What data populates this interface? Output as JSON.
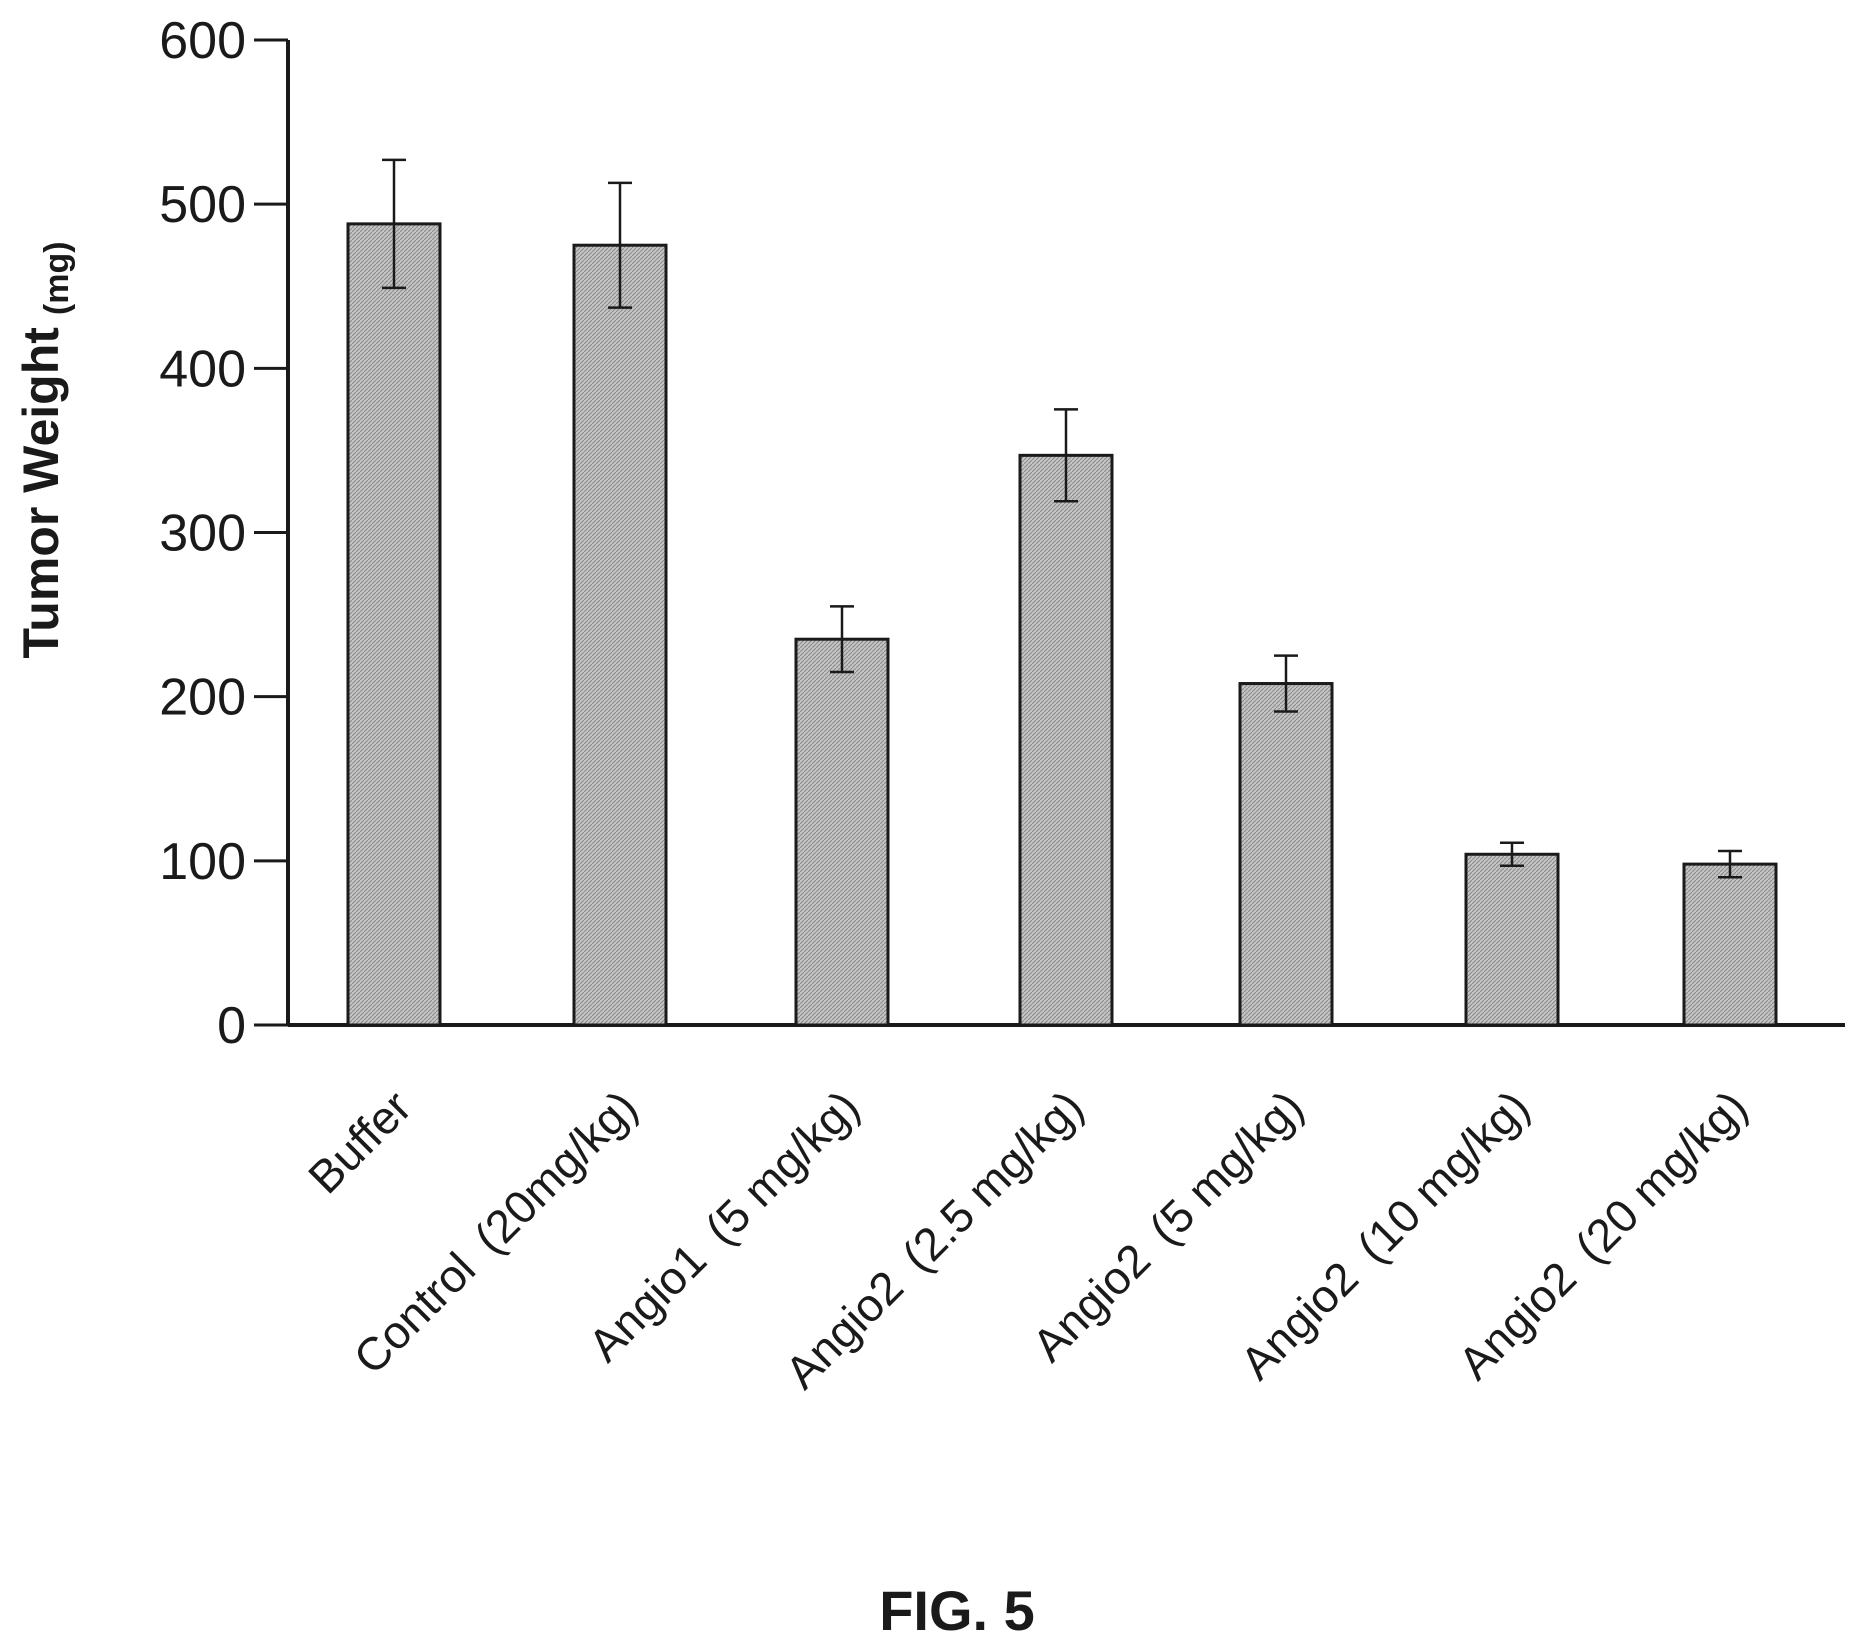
{
  "figure_caption": "FIG. 5",
  "chart_data": {
    "type": "bar",
    "categories": [
      {
        "name": "Buffer",
        "dose": ""
      },
      {
        "name": "Control",
        "dose": "(20mg/kg)"
      },
      {
        "name": "Angio1",
        "dose": "(5 mg/kg)"
      },
      {
        "name": "Angio2",
        "dose": "(2.5 mg/kg)"
      },
      {
        "name": "Angio2",
        "dose": "(5 mg/kg)"
      },
      {
        "name": "Angio2",
        "dose": "(10 mg/kg)"
      },
      {
        "name": "Angio2",
        "dose": "(20 mg/kg)"
      }
    ],
    "values": [
      488,
      475,
      235,
      347,
      208,
      104,
      98
    ],
    "errors": [
      39,
      38,
      20,
      28,
      17,
      7,
      8
    ],
    "ylabel": "Tumor Weight",
    "ylabel_unit": "(mg)",
    "ylim": [
      0,
      600
    ],
    "yticks": [
      0,
      100,
      200,
      300,
      400,
      500,
      600
    ],
    "grid": false,
    "legend": "none",
    "bar_color": "#b8b8b8",
    "edge_color": "#1a1a1a"
  }
}
